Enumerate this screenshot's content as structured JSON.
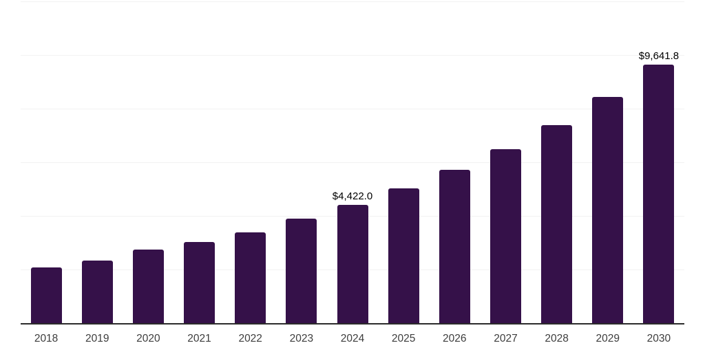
{
  "page": {
    "background": "#ffffff"
  },
  "chart_data": {
    "type": "bar",
    "title": "",
    "xlabel": "",
    "ylabel": "",
    "categories": [
      "2018",
      "2019",
      "2020",
      "2021",
      "2022",
      "2023",
      "2024",
      "2025",
      "2026",
      "2027",
      "2028",
      "2029",
      "2030"
    ],
    "values": [
      2070,
      2330,
      2740,
      3030,
      3390,
      3890,
      4422.0,
      5030,
      5710,
      6490,
      7390,
      8440,
      9641.8
    ],
    "data_labels": [
      "",
      "",
      "",
      "",
      "",
      "",
      "$4,422.0",
      "",
      "",
      "",
      "",
      "",
      "$9,641.8"
    ],
    "ylim": [
      0,
      12000
    ],
    "gridline_step": 2000,
    "grid": "horizontal-only",
    "legend": "none",
    "colors": {
      "bar": "#351149",
      "axis_line": "#2b2b2b",
      "gridline": "#f2f2f2",
      "tick_label": "#3d3d3d",
      "data_label": "#000000",
      "background": "#ffffff"
    }
  }
}
